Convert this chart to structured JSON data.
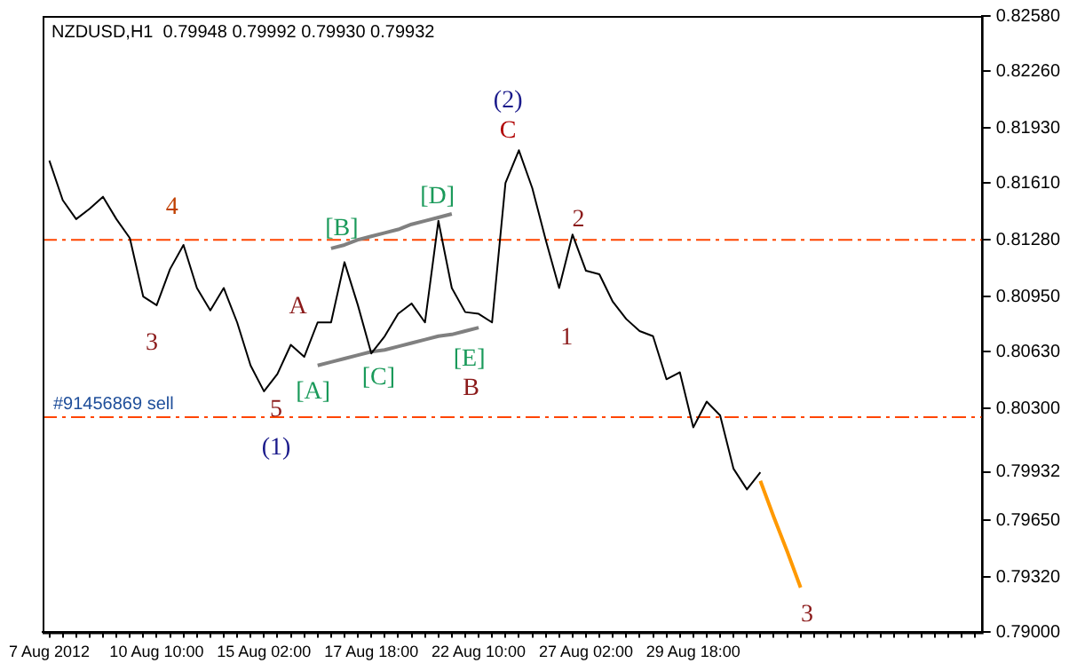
{
  "chart_data": {
    "type": "line",
    "title": "NZDUSD,H1  0.79948 0.79992 0.79930 0.79932",
    "categories": [
      "7 Aug 2012",
      null,
      null,
      null,
      null,
      null,
      null,
      null,
      "10 Aug 10:00",
      null,
      null,
      null,
      null,
      null,
      null,
      null,
      "15 Aug 02:00",
      null,
      null,
      null,
      null,
      null,
      null,
      null,
      "17 Aug 18:00",
      null,
      null,
      null,
      null,
      null,
      null,
      null,
      "22 Aug 10:00",
      null,
      null,
      null,
      null,
      null,
      null,
      null,
      "27 Aug 02:00",
      null,
      null,
      null,
      null,
      null,
      null,
      null,
      "29 Aug 18:00",
      null,
      null,
      null,
      null,
      null,
      null,
      null,
      null,
      null,
      null,
      null,
      null,
      null,
      null,
      null,
      null,
      null,
      null,
      null,
      null,
      null
    ],
    "series": [
      {
        "color": "#000000",
        "values": [
          0.8174,
          0.8151,
          0.814,
          0.8146,
          0.8153,
          0.814,
          0.8129,
          0.8095,
          0.809,
          0.8111,
          0.8125,
          0.81,
          0.8087,
          0.81,
          0.808,
          0.8055,
          0.804,
          0.805,
          0.8067,
          0.806,
          0.808,
          0.808,
          0.8115,
          0.809,
          0.8062,
          0.8072,
          0.8085,
          0.8091,
          0.808,
          0.8139,
          0.81,
          0.8086,
          0.8085,
          0.808,
          0.8161,
          0.818,
          0.8158,
          0.8128,
          0.81,
          0.8131,
          0.811,
          0.8108,
          0.8092,
          0.8082,
          0.8075,
          0.8072,
          0.8047,
          0.8051,
          0.8019,
          0.8034,
          0.8026,
          0.7995,
          0.7983,
          0.7993,
          null,
          null,
          null,
          null,
          null,
          null,
          null,
          null,
          null,
          null,
          null,
          null,
          null,
          null,
          null,
          null
        ]
      },
      {
        "color": "#808080",
        "values": [
          null,
          null,
          null,
          null,
          null,
          null,
          null,
          null,
          null,
          null,
          null,
          null,
          null,
          null,
          null,
          null,
          null,
          null,
          null,
          null,
          0.8055,
          0.8057,
          0.8059,
          0.8061,
          0.8063,
          0.8064,
          0.8066,
          0.8068,
          0.807,
          0.8072,
          0.8073,
          0.8075,
          0.8077,
          null,
          null,
          null,
          null,
          null,
          null,
          null,
          null,
          null,
          null,
          null,
          null,
          null,
          null,
          null,
          null,
          null,
          null,
          null,
          null,
          null,
          null,
          null,
          null,
          null,
          null,
          null,
          null,
          null,
          null,
          null,
          null,
          null,
          null,
          null,
          null,
          null
        ]
      },
      {
        "color": "#808080",
        "values": [
          null,
          null,
          null,
          null,
          null,
          null,
          null,
          null,
          null,
          null,
          null,
          null,
          null,
          null,
          null,
          null,
          null,
          null,
          null,
          null,
          null,
          0.8123,
          0.8125,
          0.8128,
          0.813,
          0.8132,
          0.8134,
          0.8137,
          0.8139,
          0.8141,
          0.8143,
          null,
          null,
          null,
          null,
          null,
          null,
          null,
          null,
          null,
          null,
          null,
          null,
          null,
          null,
          null,
          null,
          null,
          null,
          null,
          null,
          null,
          null,
          null,
          null,
          null,
          null,
          null,
          null,
          null,
          null,
          null,
          null,
          null,
          null,
          null,
          null,
          null,
          null,
          null
        ]
      },
      {
        "color": "#ff9900",
        "values": [
          null,
          null,
          null,
          null,
          null,
          null,
          null,
          null,
          null,
          null,
          null,
          null,
          null,
          null,
          null,
          null,
          null,
          null,
          null,
          null,
          null,
          null,
          null,
          null,
          null,
          null,
          null,
          null,
          null,
          null,
          null,
          null,
          null,
          null,
          null,
          null,
          null,
          null,
          null,
          null,
          null,
          null,
          null,
          null,
          null,
          null,
          null,
          null,
          null,
          null,
          null,
          null,
          null,
          0.7988,
          0.7967,
          0.7947,
          0.7926,
          null,
          null,
          null,
          null,
          null,
          null,
          null,
          null,
          null,
          null,
          null,
          null,
          null
        ]
      }
    ],
    "ylim": [
      0.79,
      0.8258
    ],
    "yticks": [
      {
        "value": 0.79,
        "label": "0.79000"
      },
      {
        "value": 0.7932,
        "label": "0.79320"
      },
      {
        "value": 0.7965,
        "label": "0.79650"
      },
      {
        "value": 0.79932,
        "label": "0.79932"
      },
      {
        "value": 0.803,
        "label": "0.80300"
      },
      {
        "value": 0.8063,
        "label": "0.80630"
      },
      {
        "value": 0.8095,
        "label": "0.80950"
      },
      {
        "value": 0.8128,
        "label": "0.81280"
      },
      {
        "value": 0.8161,
        "label": "0.81610"
      },
      {
        "value": 0.8193,
        "label": "0.81930"
      },
      {
        "value": 0.8226,
        "label": "0.82260"
      },
      {
        "value": 0.8258,
        "label": "0.82580"
      }
    ],
    "ref_lines": [
      {
        "axis": "y",
        "value": 0.8128,
        "color": "#ff4500",
        "line_style": "dashed"
      },
      {
        "axis": "y",
        "value": 0.8025,
        "label": "#91456869 sell",
        "color": "#ff4500",
        "line_style": "dashed"
      }
    ],
    "annotations": [
      "3",
      "4",
      "5",
      "(1)",
      "A",
      "[A]",
      "[B]",
      "[C]",
      "[D]",
      "[E]",
      "B",
      "(2)",
      "C",
      "2",
      "1",
      "3"
    ],
    "grid": false,
    "legend": false,
    "marker": "none",
    "line_style": "solid"
  }
}
